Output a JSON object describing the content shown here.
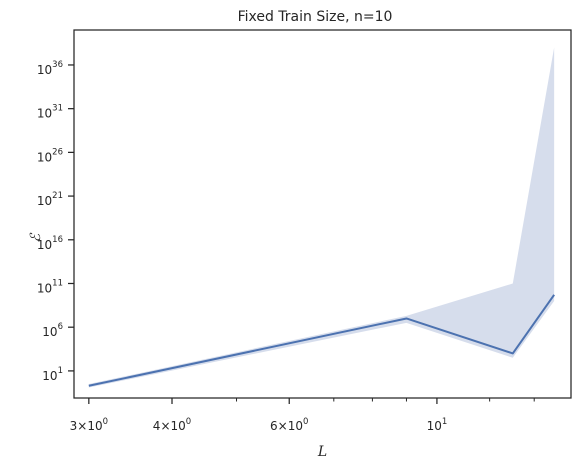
{
  "chart_data": {
    "type": "line",
    "title": "Fixed Train Size, n=10",
    "xlabel": "L",
    "ylabel": "ℰ",
    "xscale": "log",
    "yscale": "log",
    "xlim": [
      2.85,
      15.9
    ],
    "ylim_log10": [
      -2.1,
      40.0
    ],
    "grid": false,
    "legend": "none",
    "x_ticks": [
      {
        "value": 3,
        "base": "3",
        "mult": "×10",
        "exp": "0"
      },
      {
        "value": 4,
        "base": "4",
        "mult": "×10",
        "exp": "0"
      },
      {
        "value": 6,
        "base": "6",
        "mult": "×10",
        "exp": "0"
      },
      {
        "value": 10,
        "base": "",
        "mult": "10",
        "exp": "1"
      }
    ],
    "x_minor_ticks": [
      5,
      7,
      8,
      9,
      12,
      14
    ],
    "y_ticks": [
      {
        "log10": 1,
        "mult": "10",
        "exp": "1"
      },
      {
        "log10": 6,
        "mult": "10",
        "exp": "6"
      },
      {
        "log10": 11,
        "mult": "10",
        "exp": "11"
      },
      {
        "log10": 16,
        "mult": "10",
        "exp": "16"
      },
      {
        "log10": 21,
        "mult": "10",
        "exp": "21"
      },
      {
        "log10": 26,
        "mult": "10",
        "exp": "26"
      },
      {
        "log10": 31,
        "mult": "10",
        "exp": "31"
      },
      {
        "log10": 36,
        "mult": "10",
        "exp": "36"
      }
    ],
    "series": [
      {
        "x": [
          3,
          9,
          13,
          15
        ],
        "y_log10": [
          -0.7,
          7.0,
          3.0,
          9.7
        ],
        "band_upper_log10": [
          -0.5,
          7.3,
          11.0,
          38.0
        ],
        "band_lower_log10": [
          -0.9,
          6.5,
          2.5,
          9.0
        ],
        "color": "#4c72b0",
        "band_color": "#c4cfe4"
      }
    ]
  }
}
